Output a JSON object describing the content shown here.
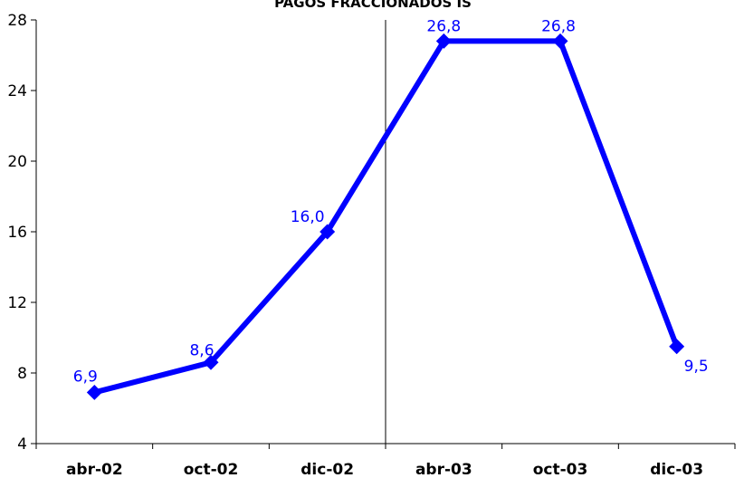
{
  "chart_data": {
    "type": "line",
    "title": "PAGOS FRACCIONADOS IS",
    "xlabel": "",
    "ylabel": "",
    "categories": [
      "abr-02",
      "oct-02",
      "dic-02",
      "abr-03",
      "oct-03",
      "dic-03"
    ],
    "series": [
      {
        "values": [
          6.9,
          8.6,
          16.0,
          26.8,
          26.8,
          9.5
        ],
        "labels": [
          "6,9",
          "8,6",
          "16,0",
          "26,8",
          "26,8",
          "9,5"
        ]
      }
    ],
    "ylim": [
      4,
      28
    ],
    "yticks": [
      4,
      8,
      12,
      16,
      20,
      24,
      28
    ],
    "ytick_labels": [
      "4",
      "8",
      "12",
      "16",
      "20",
      "24",
      "28"
    ],
    "grid": false,
    "legend": "none",
    "separator_between": [
      "dic-02",
      "abr-03"
    ],
    "colors": {
      "series": "#0000FF",
      "labels": "#0000FF",
      "axis": "#000000"
    }
  }
}
